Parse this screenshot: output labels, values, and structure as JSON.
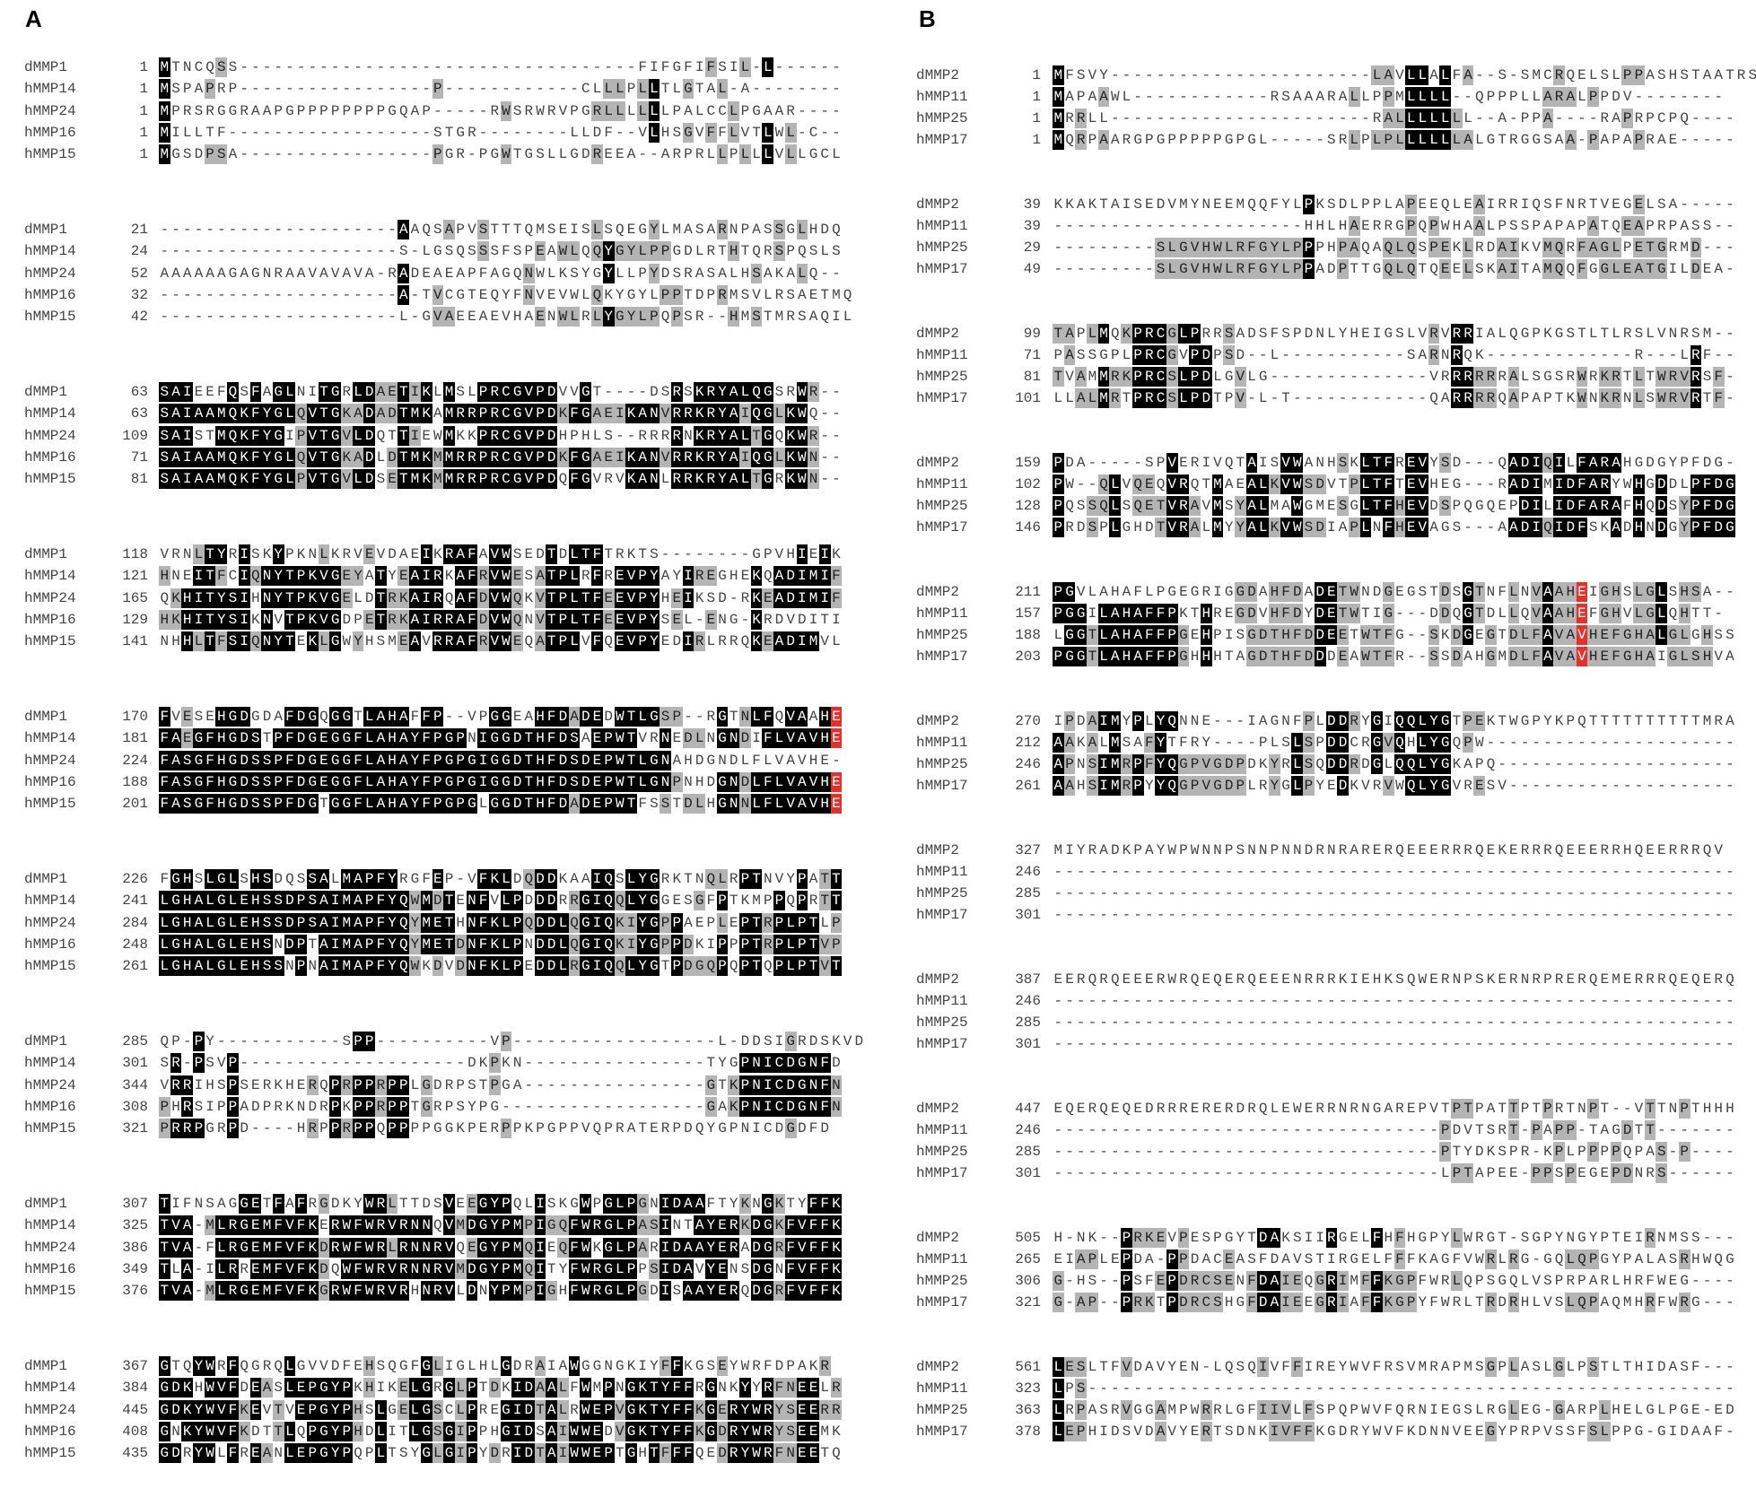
{
  "panels": [
    {
      "label": "A",
      "blocks": [
        {
          "rows": [
            {
              "name": "dMMP1",
              "start": 1,
              "seq": "MTNCQSS-----------------------------------FIFGFIFSIL-L------"
            },
            {
              "name": "hMMP14",
              "start": 1,
              "seq": "MSPAPRP-----------------P------------CLLLPLLTLGTAL-A--------"
            },
            {
              "name": "hMMP24",
              "start": 1,
              "seq": "MPRSRGGRAAPGPPPPPPPPGQAP-----RWSRWRVPGRLLLLLLPALCCLPGAAR----"
            },
            {
              "name": "hMMP16",
              "start": 1,
              "seq": "MILLTF------------------STGR--------LLDF--VLHSGVFFLVTLWL-C--"
            },
            {
              "name": "hMMP15",
              "start": 1,
              "seq": "MGSDPSA-----------------PGR-PGWTGSLLGDREEA--ARPRLLPLLLVLLGCL"
            }
          ]
        },
        {
          "rows": [
            {
              "name": "dMMP1",
              "start": 21,
              "seq": "---------------------AAQSAPVSTTTQMSEISLSQEGYLMASARNPASSGLHDQ"
            },
            {
              "name": "hMMP14",
              "start": 24,
              "seq": "---------------------S-LGSQSSSFSPEAWLQQYGYLPPGDLRTHTQRSPQSLS"
            },
            {
              "name": "hMMP24",
              "start": 52,
              "seq": "AAAAAAGAGNRAAVAVAVA-RADEAEAPFAGQNWLKSYGYLLPYDSRASALHSAKALQ--"
            },
            {
              "name": "hMMP16",
              "start": 32,
              "seq": "---------------------A-TVCGTEQYFNVEVWLQKYGYLPPTDPRMSVLRSAETMQ"
            },
            {
              "name": "hMMP15",
              "start": 42,
              "seq": "---------------------L-GVAEEAEVHAENWLRLYGYLPQPSR--HMSTMRSAQIL"
            }
          ]
        },
        {
          "rows": [
            {
              "name": "dMMP1",
              "start": 63,
              "seq": "SAIEEFQSFAGLNITGRLDAETIKLMSLPRCGVPDVVGT----DSRSKRYALQGSRWR--"
            },
            {
              "name": "hMMP14",
              "start": 63,
              "seq": "SAIAAMQKFYGLQVTGKADADTMKAMRRPRCGVPDKFGAEIKANVRRKRYAIQGLKWQ--"
            },
            {
              "name": "hMMP24",
              "start": 109,
              "seq": "SAISTMQKFYGIPVTGVLDQTTIEWMKKPRCGVPDHPHLS--RRRRNKRYALTGQKWR--"
            },
            {
              "name": "hMMP16",
              "start": 71,
              "seq": "SAIAAMQKFYGLQVTGKADLDTMKMMRRPRCGVPDKFGAEIKANVRRKRYAIQGLKWN--"
            },
            {
              "name": "hMMP15",
              "start": 81,
              "seq": "SAIAAMQKFYGLPVTGVLDSETMKMMRRPRCGVPDQFGVRVKANLRRKRYALTGRKWN--"
            }
          ]
        },
        {
          "rows": [
            {
              "name": "dMMP1",
              "start": 118,
              "seq": "VRNLTYRISKYPKNLKRVEVDAEIKRAFAVWSEDTDLTFTRKTS--------GPVHIEIK"
            },
            {
              "name": "hMMP14",
              "start": 121,
              "seq": "HNEITFCIQNYTPKVGEYATYEAIRKAFRVWESATPLRFREVPYAYIREGHEKQADIMIF"
            },
            {
              "name": "hMMP24",
              "start": 165,
              "seq": "QKHITYSIHNYTPKVGELDTRKAIRQAFDVWQKVTPLTFEEVPYHEIKSD-RKEADIMIF"
            },
            {
              "name": "hMMP16",
              "start": 129,
              "seq": "HKHITYSIKNVTPKVGDPETRKAIRRAFDVWQNVTPLTFEEVPYSEL-ENG-KRDVDITI"
            },
            {
              "name": "hMMP15",
              "start": 141,
              "seq": "NHHLTFSIQNYTEKLGWYHSMEAVRRAFRVWEQATPLVFQEVPYEDIRLRRQKEADIMVL"
            }
          ]
        },
        {
          "rows": [
            {
              "name": "dMMP1",
              "start": 170,
              "seq": "FVESEHGDGDAFDGQGGTLAHAFFP--VPGGEAHFDADEDWTLGSP--RGTNLFQVAAHE"
            },
            {
              "name": "hMMP14",
              "start": 181,
              "seq": "FAEGFHGDSTPFDGEGGFLAHAYFPGPNIGGDTHFDSAEPWTVRNEDLNGNDIFLVAVHE"
            },
            {
              "name": "hMMP24",
              "start": 224,
              "seq": "FASGFHGDSSPFDGEGGFLAHAYFPGPGIGGDTHFDSDEPWTLGNAHDGNDLFLVAVHE-"
            },
            {
              "name": "hMMP16",
              "start": 188,
              "seq": "FASGFHGDSSPFDGEGGFLAHAYFPGPGIGGDTHFDSDEPWTLGNPNHDGNDLFLVAVHE"
            },
            {
              "name": "hMMP15",
              "start": 201,
              "seq": "FASGFHGDSSPFDGTGGFLAHAYFPGPGLGGDTHFDADEPWTFSSTDLHGNNLFLVAVHE"
            }
          ]
        },
        {
          "rows": [
            {
              "name": "dMMP1",
              "start": 226,
              "seq": "FGHSLGLSHSDQSSALMAPFYRGFEP-VFKLDQDDKAAIQSLYGRKTNQLRPTNVYPATT"
            },
            {
              "name": "hMMP14",
              "start": 241,
              "seq": "LGHALGLEHSSDPSAIMAPFYQWMDTENFVLPDDDRRGIQQLYGGESGFPTKMPPQPRTT"
            },
            {
              "name": "hMMP24",
              "start": 284,
              "seq": "LGHALGLEHSSDPSAIMAPFYQYMETHNFKLPQDDLQGIQKIYGPPAEPLEPTRPLPTLP"
            },
            {
              "name": "hMMP16",
              "start": 248,
              "seq": "LGHALGLEHSNDPTAIMAPFYQYMETDNFKLPNDDLQGIQKIYGPPDKIPPPTRPLPTVP"
            },
            {
              "name": "hMMP15",
              "start": 261,
              "seq": "LGHALGLEHSSNPNAIMAPFYQWKDVDNFKLPEDDLRGIQQLYGTPDGQPQPTQPLPTVT"
            }
          ]
        },
        {
          "rows": [
            {
              "name": "dMMP1",
              "start": 285,
              "seq": "QP-PY-----------SPP----------VP------------------L-DDSIGRDSKVD"
            },
            {
              "name": "hMMP14",
              "start": 301,
              "seq": "SR-PSVP--------------------DKPKN----------------TYGPNICDGNFD"
            },
            {
              "name": "hMMP24",
              "start": 344,
              "seq": "VRRIHSPSERKHERQPRPPRPPLGDRPSTPGA----------------GTKPNICDGNFN"
            },
            {
              "name": "hMMP16",
              "start": 308,
              "seq": "PHRSIPPADPRKNDRPKPPRPPTGRPSYPG------------------GAKPNICDGNFN"
            },
            {
              "name": "hMMP15",
              "start": 321,
              "seq": "PRRPGRPD----HRPPRPPQPPPPGGKPERPPKPGPPVQPRATERPDQYGPNICDGDFD"
            }
          ]
        },
        {
          "rows": [
            {
              "name": "dMMP1",
              "start": 307,
              "seq": "TIFNSAGGETFAFRGDKYWRLTTDSVEEGYPQLISKGWPGLPGNIDAAFTYKNGKTYFFK"
            },
            {
              "name": "hMMP14",
              "start": 325,
              "seq": "TVA-MLRGEMFVFKERWFWRVRNNQVMDGYPMPIGQFWRGLPASINTAYERKDGKFVFFK"
            },
            {
              "name": "hMMP24",
              "start": 386,
              "seq": "TVA-FLRGEMFVFKDRWFWRLRNNRVQEGYPMQIEQFWKGLPARIDAAYERADGRFVFFK"
            },
            {
              "name": "hMMP16",
              "start": 349,
              "seq": "TLA-ILRREMFVFKDQWFWRVRNNRVMDGYPMQITYFWRGLPPSIDAVYENSDGNFVFFK"
            },
            {
              "name": "hMMP15",
              "start": 376,
              "seq": "TVA-MLRGEMFVFKGRWFWRVRHNRVLDNYPMPIGHFWRGLPGDISAAYERQDGRFVFFK"
            }
          ]
        },
        {
          "rows": [
            {
              "name": "dMMP1",
              "start": 367,
              "seq": "GTQYWRFQGRQLGVVDFEHSQGFGLIGLHLGDRAIAWGGNGKIYFFKGSEYWRFDPAKR"
            },
            {
              "name": "hMMP14",
              "start": 384,
              "seq": "GDKHWVFDEASLEPGYPKHIKELGRGLPTDKIDAALFWMPNGKTYFFRGNKYYRFNEELR"
            },
            {
              "name": "hMMP24",
              "start": 445,
              "seq": "GDKYWVFKEVTVEPGYPHSLGELGSCLPREGIDTALRWEPVGKTYFFKGERYWRYSEERR"
            },
            {
              "name": "hMMP16",
              "start": 408,
              "seq": "GNKYWVFKDTTLQPGYPHDLITLGSGIPPHGIDSAIWWEDVGKTYFFKGDRYWRYSEEMK"
            },
            {
              "name": "hMMP15",
              "start": 435,
              "seq": "GDRYWLFREANLEPGYPQPLTSYGLGIPYDRIDTAIWWEPTGHTFFFQEDRYWRFNEETQ"
            }
          ]
        }
      ]
    },
    {
      "label": "B",
      "blocks": [
        {
          "rows": [
            {
              "name": "dMMP2",
              "start": 1,
              "seq": "MFSVY-----------------------LAVLLALFA--S-SMCRQELSLPPASHSTAATRS"
            },
            {
              "name": "hMMP11",
              "start": 1,
              "seq": "MAPAAWL------------RSAAARALLPPMLLLL--QPPPLLARALPPDV--------"
            },
            {
              "name": "hMMP25",
              "start": 1,
              "seq": "MRRLL-----------------------RALLLLLLL--A-PPA----RAPRPCPQ----"
            },
            {
              "name": "hMMP17",
              "start": 1,
              "seq": "MQRPAARGPGPPPPPGPGL-----SRLPLPLLLLLLALGTRGGSAA-PAPAPRAE-----"
            }
          ]
        },
        {
          "rows": [
            {
              "name": "dMMP2",
              "start": 39,
              "seq": "KKAKTAISEDVMYNEEMQQFYLPKSDLPPLAPEEQLEAIRRIQSFNRTVEGELSA-----"
            },
            {
              "name": "hMMP11",
              "start": 39,
              "seq": "----------------------HHLHAERRGPQPWHAALPSSPAPAPATQEAPRPASS--"
            },
            {
              "name": "hMMP25",
              "start": 29,
              "seq": "---------SLGVHWLRFGYLPPPHPAQAQLQSPEKLRDAIKVMQRFAGLPETGRMD---"
            },
            {
              "name": "hMMP17",
              "start": 49,
              "seq": "---------SLGVHWLRFGYLPPADPTTGQLQTQEELSKAITAMQQFGGLEATGILDEA-"
            }
          ]
        },
        {
          "rows": [
            {
              "name": "dMMP2",
              "start": 99,
              "seq": "TAPLMQKPRCGLPRRSADSFSPDNLYHEIGSLVRVRRIALQGPKGSTLTLRSLVNRSM--"
            },
            {
              "name": "hMMP11",
              "start": 71,
              "seq": "PASSGPLPRCGVPDPSD--L-----------SARNRQK-------------R---LRF--"
            },
            {
              "name": "hMMP25",
              "start": 81,
              "seq": "TVAMMRKPRCSLPDLGVLG--------------VRRRRRRALSGSRWRKRTLTWRVRSF-"
            },
            {
              "name": "hMMP17",
              "start": 101,
              "seq": "LLALMRTPRCSLPDTPV-L-T------------QARRRRQAPAPTKWNKRNLSWRVRTF-"
            }
          ]
        },
        {
          "rows": [
            {
              "name": "dMMP2",
              "start": 159,
              "seq": "PDA-----SPVERIVQTAISVWANHSKLTFREVYSD---QADIQILFARAHGDGYPFDG-"
            },
            {
              "name": "hMMP11",
              "start": 102,
              "seq": "PW--QLVQEQVRQTMAEALKVWSDVTPLTFTEVHEG---RADIMIDFARYWHGDDLPFDG"
            },
            {
              "name": "hMMP25",
              "start": 128,
              "seq": "PQSSQLSQETVRAVMSYALMAWGMESGLTFHEVDSPQGQEPDILIDFARAFHQDSYPFDG"
            },
            {
              "name": "hMMP17",
              "start": 146,
              "seq": "PRDSPLGHDTVRALMYYALKVWSDIAPLNFHEVAGS---AADIQIDFSKADHNDGYPFDG"
            }
          ]
        },
        {
          "rows": [
            {
              "name": "dMMP2",
              "start": 211,
              "seq": "PGVLAHAFLPGEGRIGGDAHFDADETWNDGEGSTDSGTNFLNVAAHEIGHSLGLSHSA--"
            },
            {
              "name": "hMMP11",
              "start": 157,
              "seq": "PGGILAHAFFPKTHREGDVHFDYDETWTIG---DDQGTDLLQVAAHEFGHVLGLQHTT-"
            },
            {
              "name": "hMMP25",
              "start": 188,
              "seq": "LGGTLAHAFFPGEHPISGDTHFDDEETWTFG--SKDGEGTDLFAVAVHEFGHALGLGHSS"
            },
            {
              "name": "hMMP17",
              "start": 203,
              "seq": "PGGTLAHAFFPGHHHTAGDTHFDDDEAWTFR--SSDAHGMDLFAVAVHEFGHAIGLSHVA"
            }
          ]
        },
        {
          "rows": [
            {
              "name": "dMMP2",
              "start": 270,
              "seq": "IPDAIMYPLYQNNE---IAGNFPLDDRYGIQQLYGTPEKTWGPYKPQTTTTTTTTTTMRA"
            },
            {
              "name": "hMMP11",
              "start": 212,
              "seq": "AAKALMSAFYTFRY----PLSLSPDDCRGVQHLYGQPW----------------------"
            },
            {
              "name": "hMMP25",
              "start": 246,
              "seq": "APNSIMRPFYQGPVGDPDKYRLSQDDRDGLQQLYGKAPQ---------------------"
            },
            {
              "name": "hMMP17",
              "start": 261,
              "seq": "AAHSIMRPYYQGPVGDPLRYGLPYEDKVRVWQLYGVRESV--------------------"
            }
          ]
        },
        {
          "rows": [
            {
              "name": "dMMP2",
              "start": 327,
              "seq": "MIYRADKPAYWPWNNPSNNPNNDRNRARERQEEERRRQEKERRRQEEERRHQEERRRQV"
            },
            {
              "name": "hMMP11",
              "start": 246,
              "seq": "------------------------------------------------------------"
            },
            {
              "name": "hMMP25",
              "start": 285,
              "seq": "------------------------------------------------------------"
            },
            {
              "name": "hMMP17",
              "start": 301,
              "seq": "------------------------------------------------------------"
            }
          ]
        },
        {
          "rows": [
            {
              "name": "dMMP2",
              "start": 387,
              "seq": "EERQRQEEERWRQEQERQEEENRRRKIEHKSQWERNPSKERNRPRERQEMERRRQEQERQ"
            },
            {
              "name": "hMMP11",
              "start": 246,
              "seq": "------------------------------------------------------------"
            },
            {
              "name": "hMMP25",
              "start": 285,
              "seq": "------------------------------------------------------------"
            },
            {
              "name": "hMMP17",
              "start": 301,
              "seq": "------------------------------------------------------------"
            }
          ]
        },
        {
          "rows": [
            {
              "name": "dMMP2",
              "start": 447,
              "seq": "EQERQEQEDRRRERERDRQLEWERRNRNGAREPVTPTPATTPTPRTNPT--VTTNPTHHH"
            },
            {
              "name": "hMMP11",
              "start": 246,
              "seq": "----------------------------------PDVTSRT-PAPP-TAGDTT-------"
            },
            {
              "name": "hMMP25",
              "start": 285,
              "seq": "----------------------------------PTYDKSPR-KPLPPPPQPAS-P----"
            },
            {
              "name": "hMMP17",
              "start": 301,
              "seq": "----------------------------------LPTAPEE-PPSPEGEPDNRS------"
            }
          ]
        },
        {
          "rows": [
            {
              "name": "dMMP2",
              "start": 505,
              "seq": "H-NK--PRKEVPESPGYTDAKSIIRGELFHFHGPYLWRGT-SGPYNGYPTEIRNMSS---"
            },
            {
              "name": "hMMP11",
              "start": 265,
              "seq": "EIAPLEPDA-PPDACEASFDAVSTIRGELFFFKAGFVWRLRG-GQLQPGYPALASRHWQG"
            },
            {
              "name": "hMMP25",
              "start": 306,
              "seq": "G-HS--PSFEPDRCSENFDAIEQGRIMFFKGPFWRLQPSGQLVSPRPARLHRFWEG----"
            },
            {
              "name": "hMMP17",
              "start": 321,
              "seq": "G-AP--PRKTPDRCSHGFDAIEEGRIAFFKGPYFWRLTRDRHLVSLQPAQMHRFWRG---"
            }
          ]
        },
        {
          "rows": [
            {
              "name": "dMMP2",
              "start": 561,
              "seq": "LESLTFVDAVYEN-LQSQIVFFIREYWVFRSVMRAPMSGPLASLGLPSTLTHIDASF---"
            },
            {
              "name": "hMMP11",
              "start": 323,
              "seq": "LPS---------------------------------------------------------"
            },
            {
              "name": "hMMP25",
              "start": 363,
              "seq": "LRPASRVGGAMPWRRLGFIIVLFSPQPWVFQRNIEGSLRGLEG-GARPLHELGLPGE-ED"
            },
            {
              "name": "hMMP17",
              "start": 378,
              "seq": "LEPHIDSVDAVYERTSDNKIVFFKGDRYWVFKDNNVEEGYPRPVSSFSLPPG-GIDAAF-"
            }
          ]
        }
      ]
    }
  ]
}
